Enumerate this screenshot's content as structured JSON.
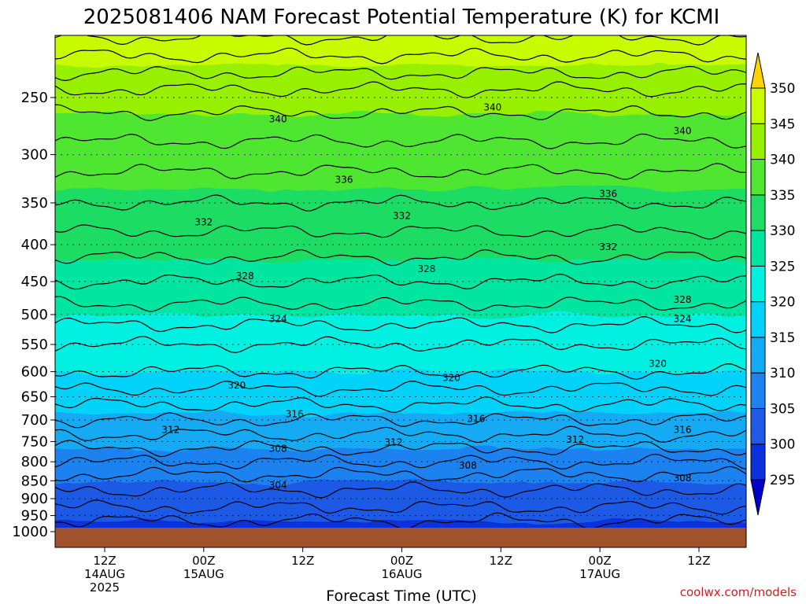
{
  "chart_data": {
    "type": "heatmap",
    "title": "2025081406 NAM Forecast Potential Temperature (K) for KCMI",
    "xlabel": "Forecast Time (UTC)",
    "ylabel": "",
    "credit": "coolwx.com/models",
    "y_axis": {
      "scale": "log",
      "inverted": true,
      "ticks": [
        "250",
        "300",
        "350",
        "400",
        "450",
        "500",
        "550",
        "600",
        "650",
        "700",
        "750",
        "800",
        "850",
        "900",
        "950",
        "1000"
      ]
    },
    "x_axis": {
      "ticks": [
        {
          "hour": 6,
          "line1": "12Z",
          "line2": "14AUG",
          "line3": "2025"
        },
        {
          "hour": 18,
          "line1": "00Z",
          "line2": "15AUG",
          "line3": ""
        },
        {
          "hour": 30,
          "line1": "12Z",
          "line2": "",
          "line3": ""
        },
        {
          "hour": 42,
          "line1": "00Z",
          "line2": "16AUG",
          "line3": ""
        },
        {
          "hour": 54,
          "line1": "12Z",
          "line2": "",
          "line3": ""
        },
        {
          "hour": 66,
          "line1": "00Z",
          "line2": "17AUG",
          "line3": ""
        },
        {
          "hour": 78,
          "line1": "12Z",
          "line2": "",
          "line3": ""
        }
      ]
    },
    "colorbar": {
      "levels": [
        295,
        300,
        305,
        310,
        315,
        320,
        325,
        330,
        335,
        340,
        345,
        350
      ],
      "labels": [
        "295",
        "300",
        "305",
        "310",
        "315",
        "320",
        "325",
        "330",
        "335",
        "340",
        "345",
        "350"
      ],
      "colors": [
        "#0000c8",
        "#0a32dc",
        "#1e5ae6",
        "#1e82f0",
        "#14aaf5",
        "#00d2fa",
        "#00f0e1",
        "#00e6a0",
        "#1edc64",
        "#50e632",
        "#96f000",
        "#c8fa00",
        "#ffff00",
        "#ffd200"
      ]
    },
    "contour_levels": [
      300,
      302,
      304,
      306,
      308,
      310,
      312,
      314,
      316,
      318,
      320,
      322,
      324,
      326,
      328,
      330,
      332,
      334,
      336,
      338,
      340,
      342,
      344,
      346,
      348
    ],
    "contour_labels": [
      {
        "text": "340",
        "hour": 27,
        "p": 268
      },
      {
        "text": "340",
        "hour": 53,
        "p": 258
      },
      {
        "text": "340",
        "hour": 76,
        "p": 278
      },
      {
        "text": "336",
        "hour": 35,
        "p": 325
      },
      {
        "text": "336",
        "hour": 67,
        "p": 340
      },
      {
        "text": "332",
        "hour": 18,
        "p": 372
      },
      {
        "text": "332",
        "hour": 42,
        "p": 365
      },
      {
        "text": "332",
        "hour": 67,
        "p": 403
      },
      {
        "text": "328",
        "hour": 23,
        "p": 442
      },
      {
        "text": "328",
        "hour": 45,
        "p": 432
      },
      {
        "text": "328",
        "hour": 76,
        "p": 477
      },
      {
        "text": "324",
        "hour": 27,
        "p": 507
      },
      {
        "text": "324",
        "hour": 76,
        "p": 507
      },
      {
        "text": "320",
        "hour": 22,
        "p": 627
      },
      {
        "text": "320",
        "hour": 48,
        "p": 612
      },
      {
        "text": "320",
        "hour": 73,
        "p": 585
      },
      {
        "text": "316",
        "hour": 29,
        "p": 687
      },
      {
        "text": "316",
        "hour": 51,
        "p": 697
      },
      {
        "text": "316",
        "hour": 76,
        "p": 722
      },
      {
        "text": "312",
        "hour": 14,
        "p": 722
      },
      {
        "text": "312",
        "hour": 41,
        "p": 752
      },
      {
        "text": "312",
        "hour": 63,
        "p": 745
      },
      {
        "text": "308",
        "hour": 27,
        "p": 767
      },
      {
        "text": "308",
        "hour": 50,
        "p": 810
      },
      {
        "text": "308",
        "hour": 76,
        "p": 843
      },
      {
        "text": "304",
        "hour": 27,
        "p": 862
      }
    ]
  }
}
